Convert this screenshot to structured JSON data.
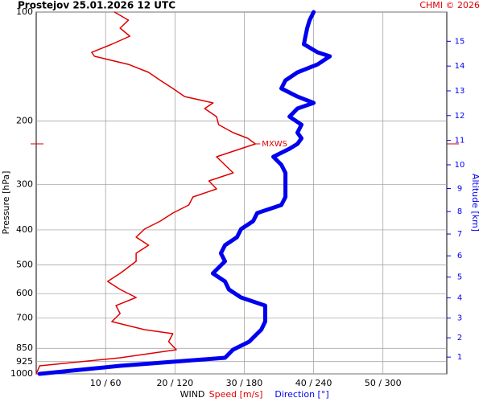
{
  "chart_data": {
    "type": "profile",
    "title": "Prostejov    25.01.2026 12 UTC",
    "credit": "CHMI © 2026",
    "y_label": "Pressure [hPa]",
    "y2_label": "Altitude [km]",
    "x_label": "WIND",
    "x_label_speed": "Speed [m/s]",
    "x_label_direction": "Direction [°]",
    "log_y": true,
    "grid": true,
    "ylim": [
      1000,
      100
    ],
    "yticks": [
      100,
      200,
      300,
      400,
      500,
      600,
      700,
      850,
      925,
      1000
    ],
    "y2ticks": [
      1,
      2,
      3,
      4,
      5,
      6,
      7,
      8,
      9,
      10,
      11,
      12,
      13,
      14,
      15
    ],
    "xlim": [
      0,
      59.2
    ],
    "x2lim": [
      0,
      355.2
    ],
    "xticks": [
      {
        "value": 10,
        "label": "10 / 60"
      },
      {
        "value": 20,
        "label": "20 / 120"
      },
      {
        "value": 30,
        "label": "30 / 180"
      },
      {
        "value": 40,
        "label": "40 / 240"
      },
      {
        "value": 50,
        "label": "50 / 300"
      }
    ],
    "y": [
      100,
      105.3,
      110.8,
      116.6,
      122.7,
      129.2,
      132.5,
      139.5,
      146.8,
      154.5,
      162.6,
      171.2,
      178.3,
      184.8,
      194.6,
      204.8,
      215.4,
      223.3,
      231.4,
      238.6,
      251.2,
      264.4,
      278.3,
      292.9,
      308.3,
      324.4,
      341.5,
      359.4,
      378.3,
      398.1,
      419,
      441,
      464.2,
      488.6,
      527.5,
      555.2,
      584.4,
      615,
      647.5,
      681.3,
      717.1,
      754.7,
      774.3,
      815,
      857.7,
      902.7,
      950.2,
      1000
    ],
    "series": [
      {
        "name": "Speed",
        "color": "#e00000",
        "axis": "x",
        "values": [
          11.3,
          13.3,
          12.1,
          13.5,
          10.9,
          8.0,
          8.4,
          13.3,
          16.2,
          17.9,
          19.7,
          21.4,
          25.5,
          24.3,
          26.0,
          26.3,
          28.4,
          30.5,
          31.6,
          29.5,
          26.0,
          27.2,
          28.4,
          24.9,
          26.0,
          22.6,
          22.0,
          19.7,
          17.9,
          15.6,
          14.4,
          16.2,
          14.4,
          14.4,
          12.1,
          10.3,
          12.1,
          14.4,
          11.5,
          12.1,
          10.9,
          15.6,
          19.7,
          19.1,
          20.2,
          12.1,
          0.5,
          0
        ]
      },
      {
        "name": "Direction",
        "color": "#0000ee",
        "axis": "x2",
        "values": [
          240,
          236.5,
          234.4,
          233,
          231.6,
          243.5,
          254,
          243.5,
          226,
          215.6,
          212.1,
          226,
          240,
          226,
          219.1,
          229.5,
          226,
          229.5,
          226,
          219.1,
          205.1,
          212.1,
          215.6,
          215.6,
          215.6,
          215.6,
          212.1,
          191.2,
          187.7,
          177.2,
          173.7,
          163.3,
          159.8,
          163.3,
          152.8,
          163.3,
          166.7,
          177.2,
          198.1,
          198.1,
          198.1,
          194.7,
          191.2,
          184.2,
          170.2,
          163.3,
          72.6,
          2.8
        ]
      }
    ],
    "marker": {
      "label": "MXWS",
      "pressure": 231.4,
      "speed": 31.6
    }
  }
}
